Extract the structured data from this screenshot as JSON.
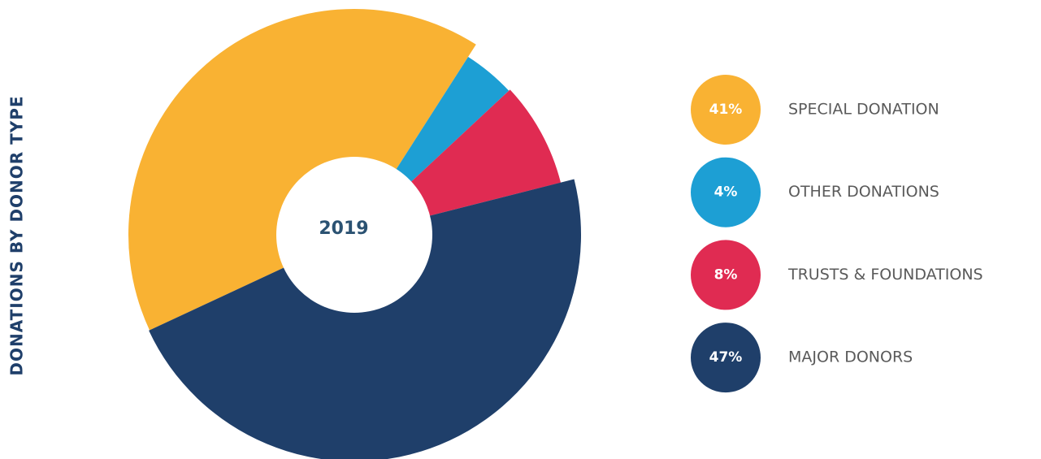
{
  "chart_data": {
    "type": "donut",
    "title": "DONATIONS BY DONOR TYPE",
    "center_label": "2019",
    "categories": [
      "SPECIAL DONATION",
      "OTHER DONATIONS",
      "TRUSTS & FOUNDATIONS",
      "MAJOR DONORS"
    ],
    "values": [
      41,
      4,
      8,
      47
    ],
    "value_labels": [
      "41%",
      "4%",
      "8%",
      "47%"
    ],
    "colors": [
      "#f9b233",
      "#1d9fd4",
      "#e02b52",
      "#1f3f6a"
    ]
  }
}
